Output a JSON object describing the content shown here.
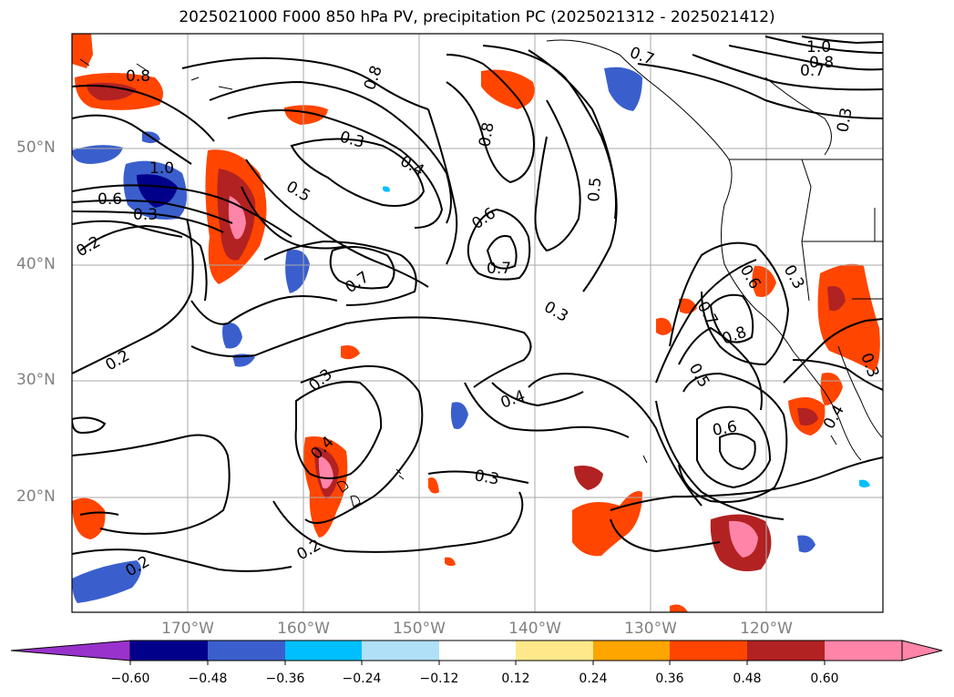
{
  "title": "2025021000 F000 850 hPa PV, precipitation PC (2025021312 - 2025021412)",
  "map": {
    "lon_range": [
      -180,
      -110
    ],
    "lat_range": [
      10,
      60
    ],
    "lat_labels": [
      "50°N",
      "40°N",
      "30°N",
      "20°N"
    ],
    "lon_labels": [
      "170°W",
      "160°W",
      "150°W",
      "140°W",
      "130°W",
      "120°W"
    ],
    "gridlines": true,
    "contour_labels": [
      "0.8",
      "0.6",
      "0.3",
      "1.0",
      "0.2",
      "0.2",
      "0.3",
      "0.3",
      "0.5",
      "0.4",
      "0.7",
      "0.6",
      "0.7",
      "0.3",
      "0.8",
      "0.5",
      "0.7",
      "0.8",
      "1.0",
      "0.8",
      "0.7",
      "0.3",
      "0.6",
      "0.7",
      "0.8",
      "0.5",
      "0.6",
      "0.4",
      "0.3",
      "0.3",
      "0.2",
      "0.2",
      "0.4",
      "0.4",
      "0.3"
    ]
  },
  "colorbar": {
    "tick_labels": [
      "−0.60",
      "−0.48",
      "−0.36",
      "−0.24",
      "−0.12",
      "0.12",
      "0.24",
      "0.36",
      "0.48",
      "0.60"
    ],
    "colors": [
      "#9932cc",
      "#00008b",
      "#3a5fcd",
      "#00bfff",
      "#b0e0f8",
      "#ffffff",
      "#ffe88a",
      "#ffa500",
      "#ff4500",
      "#b22222",
      "#ff85a8",
      "#ff85a8"
    ],
    "extend": "both"
  }
}
